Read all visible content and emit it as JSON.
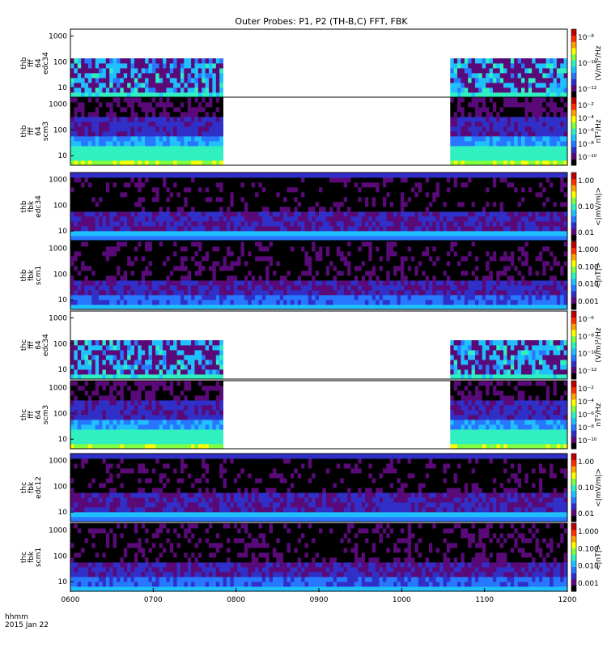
{
  "chart_data": {
    "type": "heatmap",
    "title": "Outer Probes: P1, P2 (TH-B,C) FFT, FBK",
    "xlabel_lines": [
      "hhmm",
      "2015 Jan 22"
    ],
    "x_ticks": [
      "0600",
      "0700",
      "0800",
      "0900",
      "1000",
      "1100",
      "1200"
    ],
    "xlim_hours": [
      6,
      12
    ],
    "data_gap_hours": [
      7.85,
      10.6
    ],
    "colormap": [
      "#000000",
      "#5a0a78",
      "#3030c8",
      "#2878ff",
      "#20c0ff",
      "#30f0c0",
      "#80ff40",
      "#ffff00",
      "#ffa000",
      "#ff3000",
      "#c00000"
    ],
    "panels": [
      {
        "id": "thb-fff-edc34",
        "ylabel": [
          "thb",
          "fff",
          "64",
          "edc34"
        ],
        "cb_label": "(V/m)²/Hz",
        "cb_ticks": [
          "10⁻⁸",
          "10⁻¹⁰",
          "10⁻¹²"
        ],
        "y_ticks": [
          "1000",
          "100",
          "10"
        ],
        "kind": "fff_e",
        "has_gap": true
      },
      {
        "id": "thb-fff-scm3",
        "ylabel": [
          "thb",
          "fff",
          "64",
          "scm3"
        ],
        "cb_label": "nT²/Hz",
        "cb_ticks": [
          "10⁻²",
          "10⁻⁴",
          "10⁻⁶",
          "10⁻⁸",
          "10⁻¹⁰"
        ],
        "y_ticks": [
          "1000",
          "100",
          "10"
        ],
        "kind": "fff_b",
        "has_gap": true
      },
      {
        "id": "thb-fbk-edc34",
        "ylabel": [
          "thb",
          "fbk",
          "edc34"
        ],
        "cb_label": "<|mV/m|>",
        "cb_ticks": [
          "1.00",
          "0.10",
          "0.01"
        ],
        "y_ticks": [
          "1000",
          "100",
          "10"
        ],
        "kind": "fbk_e",
        "has_gap": false
      },
      {
        "id": "thb-fbk-scm1",
        "ylabel": [
          "thb",
          "fbk",
          "scm1"
        ],
        "cb_label": "<|nT|>",
        "cb_ticks": [
          "1.000",
          "0.100",
          "0.010",
          "0.001"
        ],
        "y_ticks": [
          "1000",
          "100",
          "10"
        ],
        "kind": "fbk_b",
        "has_gap": false
      },
      {
        "id": "thc-fff-edc34",
        "ylabel": [
          "thc",
          "fff",
          "64",
          "edc34"
        ],
        "cb_label": "(V/m)²/Hz",
        "cb_ticks": [
          "10⁻⁶",
          "10⁻⁸",
          "10⁻¹⁰",
          "10⁻¹²"
        ],
        "y_ticks": [
          "1000",
          "100",
          "10"
        ],
        "kind": "fff_e",
        "has_gap": true
      },
      {
        "id": "thc-fff-scm3",
        "ylabel": [
          "thc",
          "fff",
          "64",
          "scm3"
        ],
        "cb_label": "nT²/Hz",
        "cb_ticks": [
          "10⁻²",
          "10⁻⁴",
          "10⁻⁶",
          "10⁻⁸",
          "10⁻¹⁰"
        ],
        "y_ticks": [
          "1000",
          "100",
          "10"
        ],
        "kind": "fff_b",
        "has_gap": true
      },
      {
        "id": "thc-fbk-edc12",
        "ylabel": [
          "thc",
          "fbk",
          "edc12"
        ],
        "cb_label": "<|mV/m|>",
        "cb_ticks": [
          "1.00",
          "0.10",
          "0.01"
        ],
        "y_ticks": [
          "1000",
          "100",
          "10"
        ],
        "kind": "fbk_e",
        "has_gap": false
      },
      {
        "id": "thc-fbk-scm1",
        "ylabel": [
          "thc",
          "fbk",
          "scm1"
        ],
        "cb_label": "<|nT|>",
        "cb_ticks": [
          "1.000",
          "0.100",
          "0.010",
          "0.001"
        ],
        "y_ticks": [
          "1000",
          "100",
          "10"
        ],
        "kind": "fbk_b",
        "has_gap": false
      }
    ]
  }
}
